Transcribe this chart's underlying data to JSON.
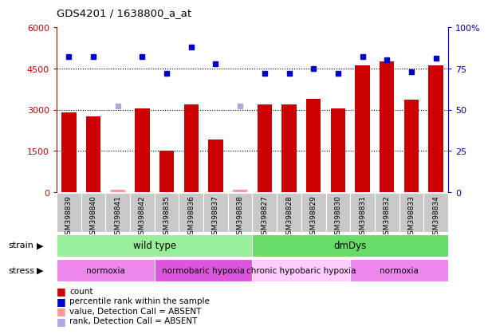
{
  "title": "GDS4201 / 1638800_a_at",
  "samples": [
    "GSM398839",
    "GSM398840",
    "GSM398841",
    "GSM398842",
    "GSM398835",
    "GSM398836",
    "GSM398837",
    "GSM398838",
    "GSM398827",
    "GSM398828",
    "GSM398829",
    "GSM398830",
    "GSM398831",
    "GSM398832",
    "GSM398833",
    "GSM398834"
  ],
  "counts": [
    2900,
    2750,
    100,
    3050,
    1500,
    3200,
    1900,
    100,
    3200,
    3200,
    3400,
    3050,
    4600,
    4750,
    3350,
    4600
  ],
  "ranks": [
    82,
    82,
    52,
    82,
    72,
    88,
    78,
    52,
    72,
    72,
    75,
    72,
    82,
    80,
    73,
    81
  ],
  "absent_count_idx": [
    2,
    7
  ],
  "absent_rank_idx": [
    2,
    7
  ],
  "ylim_left": [
    0,
    6000
  ],
  "ylim_right": [
    0,
    100
  ],
  "yticks_left": [
    0,
    1500,
    3000,
    4500,
    6000
  ],
  "yticks_right": [
    0,
    25,
    50,
    75,
    100
  ],
  "bar_color": "#CC0000",
  "absent_bar_color": "#FF9999",
  "rank_color": "#0000CC",
  "absent_rank_color": "#AAAADD",
  "strain_groups": [
    {
      "label": "wild type",
      "start": 0,
      "end": 8,
      "color": "#99EE99"
    },
    {
      "label": "dmDys",
      "start": 8,
      "end": 16,
      "color": "#66DD66"
    }
  ],
  "stress_groups": [
    {
      "label": "normoxia",
      "start": 0,
      "end": 4,
      "color": "#EE88EE"
    },
    {
      "label": "normobaric hypoxia",
      "start": 4,
      "end": 8,
      "color": "#DD55DD"
    },
    {
      "label": "chronic hypobaric hypoxia",
      "start": 8,
      "end": 12,
      "color": "#FFCCFF"
    },
    {
      "label": "normoxia",
      "start": 12,
      "end": 16,
      "color": "#EE88EE"
    }
  ],
  "left_axis_color": "#CC0000",
  "right_axis_color": "#0000CC",
  "legend_items": [
    {
      "color": "#CC0000",
      "label": "count"
    },
    {
      "color": "#0000CC",
      "label": "percentile rank within the sample"
    },
    {
      "color": "#FF9999",
      "label": "value, Detection Call = ABSENT"
    },
    {
      "color": "#AAAADD",
      "label": "rank, Detection Call = ABSENT"
    }
  ]
}
